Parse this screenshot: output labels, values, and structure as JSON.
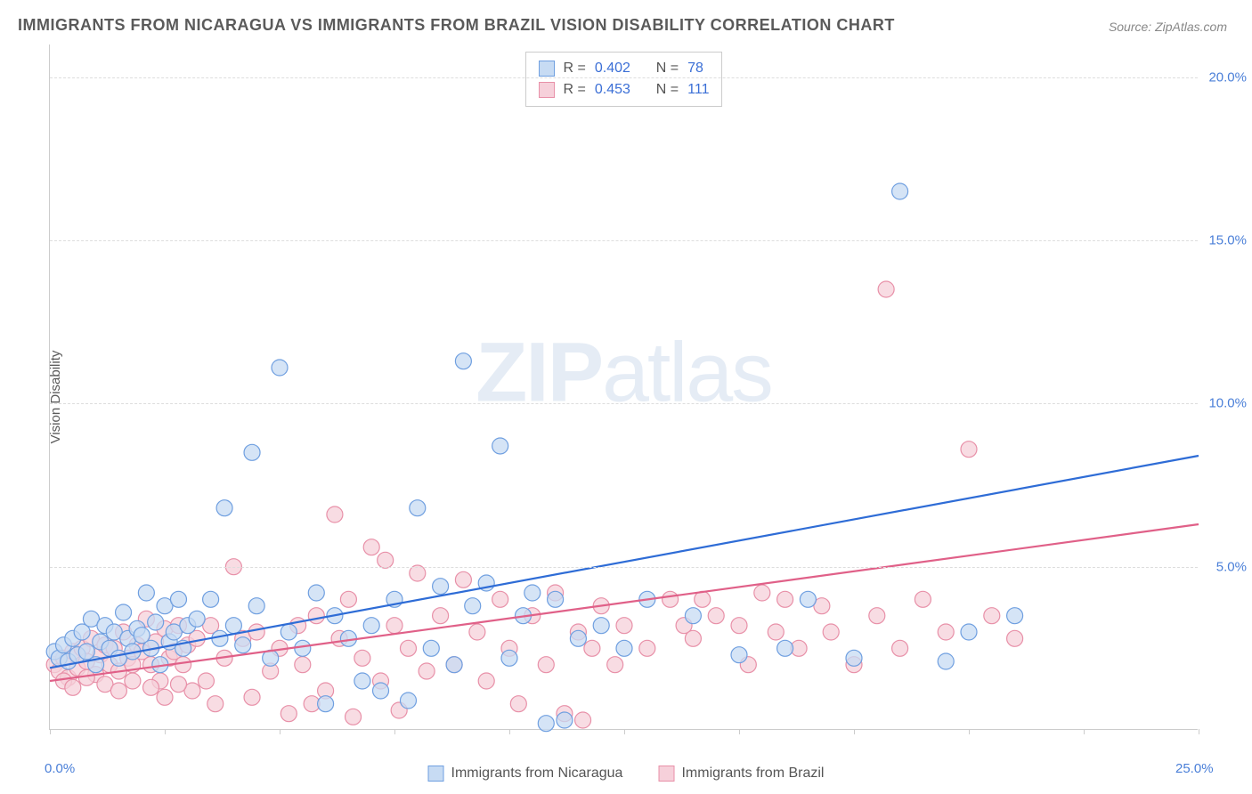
{
  "title": "IMMIGRANTS FROM NICARAGUA VS IMMIGRANTS FROM BRAZIL VISION DISABILITY CORRELATION CHART",
  "source": "Source: ZipAtlas.com",
  "y_axis_label": "Vision Disability",
  "watermark": {
    "zip": "ZIP",
    "atlas": "atlas"
  },
  "chart": {
    "type": "scatter",
    "background_color": "#ffffff",
    "grid_color": "#dddddd",
    "axis_color": "#cccccc",
    "tick_label_color": "#4a7fd8",
    "xlim": [
      0,
      25
    ],
    "ylim": [
      0,
      21
    ],
    "x_ticks": [
      0,
      2.5,
      5,
      7.5,
      10,
      12.5,
      15,
      17.5,
      20,
      22.5,
      25
    ],
    "x_tick_labels": {
      "0": "0.0%",
      "25": "25.0%"
    },
    "y_ticks": [
      5,
      10,
      15,
      20
    ],
    "y_tick_labels": {
      "5": "5.0%",
      "10": "10.0%",
      "15": "15.0%",
      "20": "20.0%"
    },
    "marker_radius": 9,
    "marker_stroke_width": 1.2,
    "trend_line_width": 2.2
  },
  "series": [
    {
      "name": "Immigrants from Nicaragua",
      "fill_color": "#c7dbf3",
      "stroke_color": "#6f9fe0",
      "trend_color": "#2e6cd6",
      "r_value": "0.402",
      "n_value": "78",
      "trend": {
        "x1": 0,
        "y1": 1.9,
        "x2": 25,
        "y2": 8.4
      },
      "points": [
        [
          0.1,
          2.4
        ],
        [
          0.2,
          2.2
        ],
        [
          0.3,
          2.6
        ],
        [
          0.4,
          2.1
        ],
        [
          0.5,
          2.8
        ],
        [
          0.6,
          2.3
        ],
        [
          0.7,
          3.0
        ],
        [
          0.8,
          2.4
        ],
        [
          0.9,
          3.4
        ],
        [
          1.0,
          2.0
        ],
        [
          1.1,
          2.7
        ],
        [
          1.2,
          3.2
        ],
        [
          1.3,
          2.5
        ],
        [
          1.4,
          3.0
        ],
        [
          1.5,
          2.2
        ],
        [
          1.6,
          3.6
        ],
        [
          1.7,
          2.8
        ],
        [
          1.8,
          2.4
        ],
        [
          1.9,
          3.1
        ],
        [
          2.0,
          2.9
        ],
        [
          2.1,
          4.2
        ],
        [
          2.2,
          2.5
        ],
        [
          2.3,
          3.3
        ],
        [
          2.4,
          2.0
        ],
        [
          2.5,
          3.8
        ],
        [
          2.6,
          2.7
        ],
        [
          2.7,
          3.0
        ],
        [
          2.8,
          4.0
        ],
        [
          2.9,
          2.5
        ],
        [
          3.0,
          3.2
        ],
        [
          3.2,
          3.4
        ],
        [
          3.5,
          4.0
        ],
        [
          3.7,
          2.8
        ],
        [
          3.8,
          6.8
        ],
        [
          4.0,
          3.2
        ],
        [
          4.2,
          2.6
        ],
        [
          4.4,
          8.5
        ],
        [
          4.5,
          3.8
        ],
        [
          4.8,
          2.2
        ],
        [
          5.0,
          11.1
        ],
        [
          5.2,
          3.0
        ],
        [
          5.5,
          2.5
        ],
        [
          5.8,
          4.2
        ],
        [
          6.0,
          0.8
        ],
        [
          6.2,
          3.5
        ],
        [
          6.5,
          2.8
        ],
        [
          6.8,
          1.5
        ],
        [
          7.0,
          3.2
        ],
        [
          7.2,
          1.2
        ],
        [
          7.5,
          4.0
        ],
        [
          7.8,
          0.9
        ],
        [
          8.0,
          6.8
        ],
        [
          8.3,
          2.5
        ],
        [
          8.5,
          4.4
        ],
        [
          8.8,
          2.0
        ],
        [
          9.0,
          11.3
        ],
        [
          9.2,
          3.8
        ],
        [
          9.5,
          4.5
        ],
        [
          9.8,
          8.7
        ],
        [
          10.0,
          2.2
        ],
        [
          10.3,
          3.5
        ],
        [
          10.5,
          4.2
        ],
        [
          10.8,
          0.2
        ],
        [
          11.0,
          4.0
        ],
        [
          11.2,
          0.3
        ],
        [
          11.5,
          2.8
        ],
        [
          12.0,
          3.2
        ],
        [
          12.5,
          2.5
        ],
        [
          13.0,
          4.0
        ],
        [
          14.0,
          3.5
        ],
        [
          15.0,
          2.3
        ],
        [
          16.0,
          2.5
        ],
        [
          16.5,
          4.0
        ],
        [
          17.5,
          2.2
        ],
        [
          18.5,
          16.5
        ],
        [
          19.5,
          2.1
        ],
        [
          20.0,
          3.0
        ],
        [
          21.0,
          3.5
        ]
      ]
    },
    {
      "name": "Immigrants from Brazil",
      "fill_color": "#f6d0da",
      "stroke_color": "#e890a8",
      "trend_color": "#e06088",
      "r_value": "0.453",
      "n_value": "111",
      "trend": {
        "x1": 0,
        "y1": 1.5,
        "x2": 25,
        "y2": 6.3
      },
      "points": [
        [
          0.1,
          2.0
        ],
        [
          0.2,
          1.8
        ],
        [
          0.3,
          2.2
        ],
        [
          0.4,
          1.6
        ],
        [
          0.5,
          2.4
        ],
        [
          0.6,
          1.9
        ],
        [
          0.7,
          2.5
        ],
        [
          0.8,
          2.1
        ],
        [
          0.9,
          2.8
        ],
        [
          1.0,
          1.7
        ],
        [
          1.1,
          2.3
        ],
        [
          1.2,
          2.6
        ],
        [
          1.3,
          2.0
        ],
        [
          1.4,
          2.5
        ],
        [
          1.5,
          1.8
        ],
        [
          1.6,
          3.0
        ],
        [
          1.7,
          2.2
        ],
        [
          1.8,
          2.0
        ],
        [
          1.9,
          2.6
        ],
        [
          2.0,
          2.4
        ],
        [
          2.1,
          3.4
        ],
        [
          2.2,
          2.0
        ],
        [
          2.3,
          2.7
        ],
        [
          2.4,
          1.5
        ],
        [
          2.5,
          3.1
        ],
        [
          2.6,
          2.2
        ],
        [
          2.7,
          2.4
        ],
        [
          2.8,
          3.2
        ],
        [
          2.9,
          2.0
        ],
        [
          3.0,
          2.6
        ],
        [
          3.1,
          1.2
        ],
        [
          3.2,
          2.8
        ],
        [
          3.4,
          1.5
        ],
        [
          3.5,
          3.2
        ],
        [
          3.6,
          0.8
        ],
        [
          3.8,
          2.2
        ],
        [
          4.0,
          5.0
        ],
        [
          4.2,
          2.8
        ],
        [
          4.4,
          1.0
        ],
        [
          4.5,
          3.0
        ],
        [
          4.8,
          1.8
        ],
        [
          5.0,
          2.5
        ],
        [
          5.2,
          0.5
        ],
        [
          5.4,
          3.2
        ],
        [
          5.5,
          2.0
        ],
        [
          5.7,
          0.8
        ],
        [
          5.8,
          3.5
        ],
        [
          6.0,
          1.2
        ],
        [
          6.2,
          6.6
        ],
        [
          6.3,
          2.8
        ],
        [
          6.5,
          4.0
        ],
        [
          6.6,
          0.4
        ],
        [
          6.8,
          2.2
        ],
        [
          7.0,
          5.6
        ],
        [
          7.2,
          1.5
        ],
        [
          7.3,
          5.2
        ],
        [
          7.5,
          3.2
        ],
        [
          7.6,
          0.6
        ],
        [
          7.8,
          2.5
        ],
        [
          8.0,
          4.8
        ],
        [
          8.2,
          1.8
        ],
        [
          8.5,
          3.5
        ],
        [
          8.8,
          2.0
        ],
        [
          9.0,
          4.6
        ],
        [
          9.3,
          3.0
        ],
        [
          9.5,
          1.5
        ],
        [
          9.8,
          4.0
        ],
        [
          10.0,
          2.5
        ],
        [
          10.2,
          0.8
        ],
        [
          10.5,
          3.5
        ],
        [
          10.8,
          2.0
        ],
        [
          11.0,
          4.2
        ],
        [
          11.2,
          0.5
        ],
        [
          11.5,
          3.0
        ],
        [
          11.6,
          0.3
        ],
        [
          11.8,
          2.5
        ],
        [
          12.0,
          3.8
        ],
        [
          12.3,
          2.0
        ],
        [
          12.5,
          3.2
        ],
        [
          13.0,
          2.5
        ],
        [
          13.5,
          4.0
        ],
        [
          13.8,
          3.2
        ],
        [
          14.0,
          2.8
        ],
        [
          14.2,
          4.0
        ],
        [
          14.5,
          3.5
        ],
        [
          15.0,
          3.2
        ],
        [
          15.2,
          2.0
        ],
        [
          15.5,
          4.2
        ],
        [
          15.8,
          3.0
        ],
        [
          16.0,
          4.0
        ],
        [
          16.3,
          2.5
        ],
        [
          16.8,
          3.8
        ],
        [
          17.0,
          3.0
        ],
        [
          17.5,
          2.0
        ],
        [
          18.0,
          3.5
        ],
        [
          18.2,
          13.5
        ],
        [
          18.5,
          2.5
        ],
        [
          19.0,
          4.0
        ],
        [
          19.5,
          3.0
        ],
        [
          20.0,
          8.6
        ],
        [
          20.5,
          3.5
        ],
        [
          21.0,
          2.8
        ],
        [
          0.3,
          1.5
        ],
        [
          0.5,
          1.3
        ],
        [
          0.8,
          1.6
        ],
        [
          1.2,
          1.4
        ],
        [
          1.5,
          1.2
        ],
        [
          1.8,
          1.5
        ],
        [
          2.2,
          1.3
        ],
        [
          2.5,
          1.0
        ],
        [
          2.8,
          1.4
        ]
      ]
    }
  ],
  "stat_legend": {
    "r_label": "R =",
    "n_label": "N ="
  },
  "bottom_legend_labels": [
    "Immigrants from Nicaragua",
    "Immigrants from Brazil"
  ]
}
